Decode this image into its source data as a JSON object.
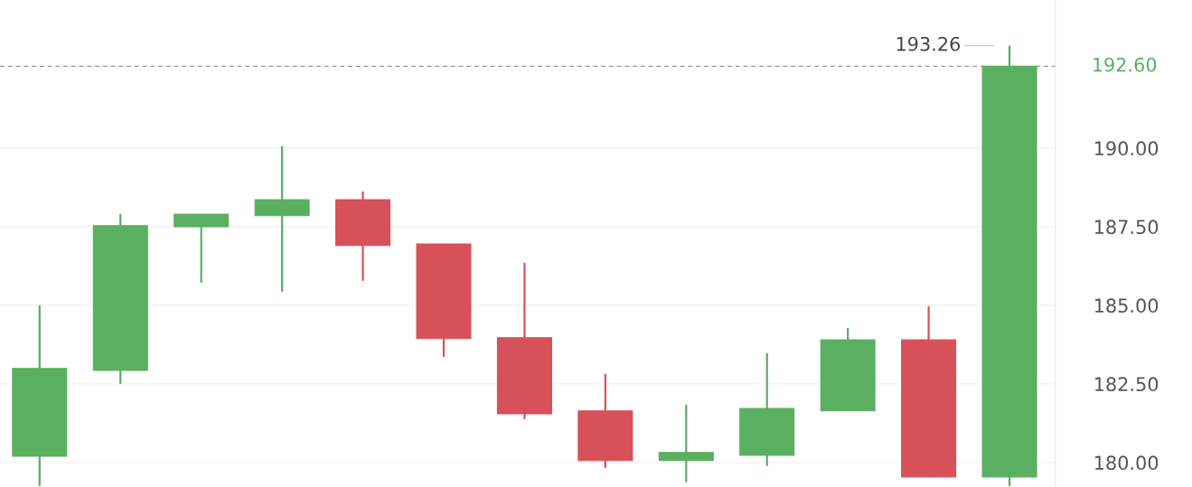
{
  "chart_data": {
    "type": "candlestick",
    "categories": [
      null,
      null,
      null,
      null,
      null,
      null,
      null,
      null,
      null,
      null,
      null,
      null,
      null
    ],
    "ohlc": [
      [
        180.2,
        185.0,
        179.25,
        182.99
      ],
      [
        182.93,
        187.9,
        182.5,
        187.53
      ],
      [
        187.5,
        187.9,
        185.72,
        187.9
      ],
      [
        187.85,
        190.06,
        185.43,
        188.36
      ],
      [
        188.36,
        188.62,
        185.78,
        186.9
      ],
      [
        186.95,
        186.95,
        183.36,
        183.94
      ],
      [
        183.97,
        186.35,
        181.38,
        181.55
      ],
      [
        181.64,
        182.82,
        179.83,
        180.06
      ],
      [
        180.06,
        181.84,
        179.37,
        180.32
      ],
      [
        180.23,
        183.48,
        179.89,
        181.72
      ],
      [
        181.64,
        184.28,
        181.64,
        183.9
      ],
      [
        183.9,
        184.97,
        179.54,
        179.54
      ],
      [
        179.54,
        193.26,
        179.25,
        192.6
      ]
    ],
    "colors": [
      "#5aaf61",
      "#5aaf61",
      "#5aaf61",
      "#5aaf61",
      "#d65159",
      "#d65159",
      "#d65159",
      "#d65159",
      "#5aaf61",
      "#5aaf61",
      "#5aaf61",
      "#d65159",
      "#5aaf61"
    ],
    "ylim": [
      179.22,
      194.71
    ],
    "yticks": [
      {
        "value": 180,
        "label": "180.00"
      },
      {
        "value": 182.5,
        "label": "182.50"
      },
      {
        "value": 185,
        "label": "185.00"
      },
      {
        "value": 187.5,
        "label": "187.50"
      },
      {
        "value": 190,
        "label": "190.00"
      }
    ],
    "grid": "y",
    "ref_lines": [
      {
        "axis": "y",
        "value": 192.6,
        "label": "192.60",
        "color": "#999999",
        "line_style": "dashed"
      }
    ],
    "annotations": [
      "193.26"
    ]
  }
}
